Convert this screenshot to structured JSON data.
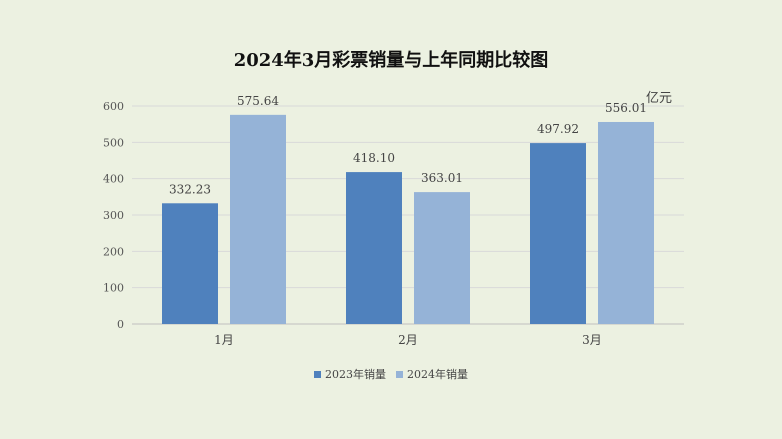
{
  "chart_data": {
    "type": "bar",
    "title": "2024年3月彩票销量与上年同期比较图",
    "unit": "亿元",
    "categories": [
      "1月",
      "2月",
      "3月"
    ],
    "series": [
      {
        "name": "2023年销量",
        "values": [
          332.23,
          418.1,
          497.92
        ],
        "labels": [
          "332.23",
          "418.10",
          "497.92"
        ],
        "color": "#4f81bd"
      },
      {
        "name": "2024年销量",
        "values": [
          575.64,
          363.01,
          556.01
        ],
        "labels": [
          "575.64",
          "363.01",
          "556.01"
        ],
        "color": "#95b3d7"
      }
    ],
    "yticks": [
      "0",
      "100",
      "200",
      "300",
      "400",
      "500",
      "600"
    ],
    "ylim": [
      0,
      600
    ],
    "grid": true,
    "legend": "bottom"
  }
}
